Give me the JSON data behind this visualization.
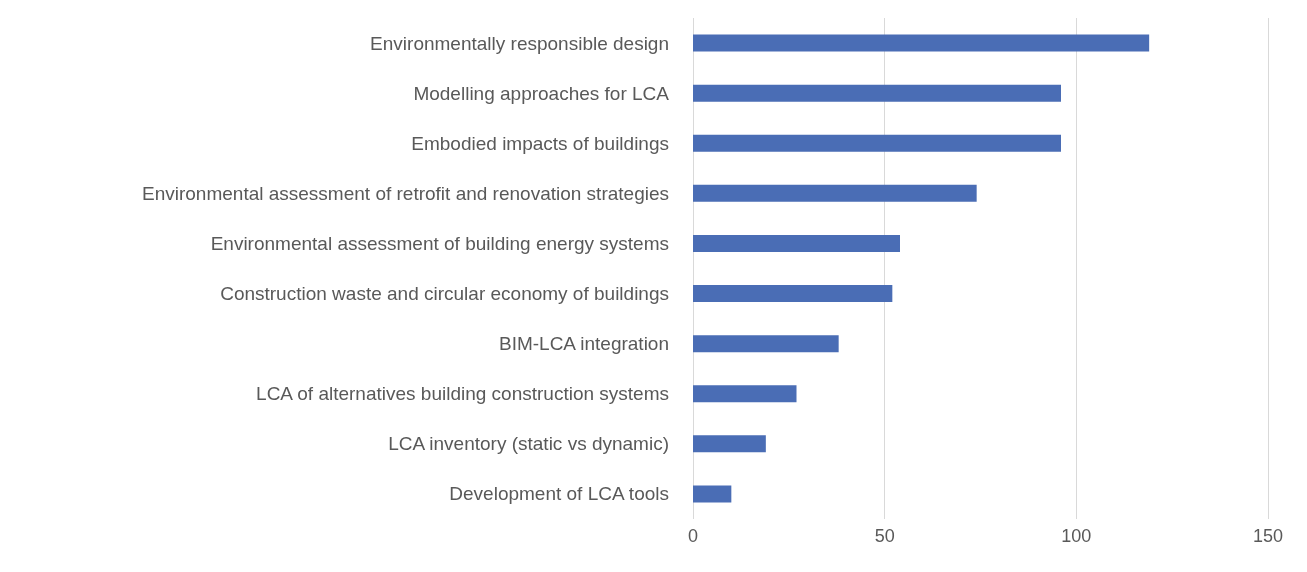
{
  "chart_data": {
    "type": "bar",
    "orientation": "horizontal",
    "categories": [
      "Environmentally responsible design",
      "Modelling approaches for LCA",
      "Embodied impacts of buildings",
      "Environmental assessment of retrofit and renovation strategies",
      "Environmental assessment of building energy systems",
      "Construction waste and circular economy of buildings",
      "BIM-LCA integration",
      "LCA of alternatives building construction systems",
      "LCA inventory (static vs dynamic)",
      "Development of LCA tools"
    ],
    "values": [
      119,
      96,
      96,
      74,
      54,
      52,
      38,
      27,
      19,
      10
    ],
    "color": "#4a6db5",
    "xlim": [
      0,
      150
    ],
    "xticks": [
      0,
      50,
      100,
      150
    ],
    "grid": "x"
  }
}
